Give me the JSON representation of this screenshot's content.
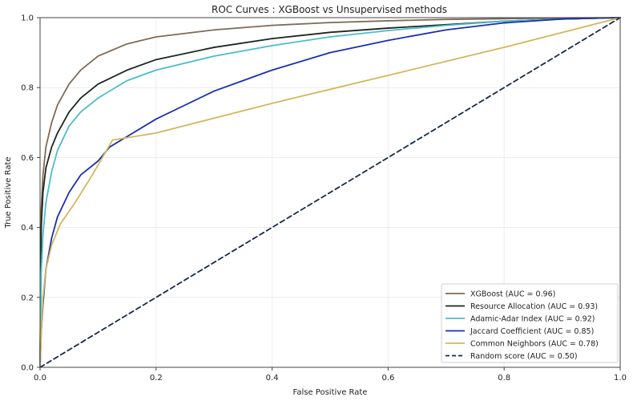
{
  "chart_data": {
    "type": "line",
    "title": "ROC Curves : XGBoost vs Unsupervised methods",
    "xlabel": "False Positive Rate",
    "ylabel": "True Positive Rate",
    "xlim": [
      0,
      1
    ],
    "ylim": [
      0,
      1
    ],
    "xticks": [
      "0.0",
      "0.2",
      "0.4",
      "0.6",
      "0.8",
      "1.0"
    ],
    "yticks": [
      "0.0",
      "0.2",
      "0.4",
      "0.6",
      "0.8",
      "1.0"
    ],
    "grid": true,
    "legend_position": "lower-right",
    "series": [
      {
        "name": "XGBoost (AUC = 0.96)",
        "color": "#7f6a57",
        "dash": "solid",
        "x": [
          0,
          0.002,
          0.005,
          0.01,
          0.02,
          0.03,
          0.05,
          0.07,
          0.1,
          0.15,
          0.2,
          0.3,
          0.4,
          0.5,
          0.6,
          0.7,
          0.8,
          0.9,
          1.0
        ],
        "y": [
          0,
          0.45,
          0.55,
          0.63,
          0.7,
          0.75,
          0.81,
          0.85,
          0.89,
          0.925,
          0.945,
          0.965,
          0.978,
          0.986,
          0.991,
          0.995,
          0.997,
          0.999,
          1.0
        ]
      },
      {
        "name": "Resource Allocation (AUC = 0.93)",
        "color": "#1c2620",
        "dash": "solid",
        "x": [
          0,
          0.002,
          0.005,
          0.01,
          0.02,
          0.03,
          0.05,
          0.07,
          0.1,
          0.15,
          0.2,
          0.3,
          0.4,
          0.5,
          0.6,
          0.7,
          0.8,
          0.9,
          1.0
        ],
        "y": [
          0,
          0.4,
          0.5,
          0.57,
          0.63,
          0.67,
          0.73,
          0.77,
          0.81,
          0.85,
          0.88,
          0.915,
          0.94,
          0.958,
          0.97,
          0.98,
          0.99,
          0.996,
          1.0
        ]
      },
      {
        "name": "Adamic-Adar Index (AUC = 0.92)",
        "color": "#4bbccb",
        "dash": "solid",
        "x": [
          0,
          0.002,
          0.005,
          0.01,
          0.02,
          0.03,
          0.05,
          0.07,
          0.1,
          0.15,
          0.2,
          0.3,
          0.4,
          0.5,
          0.6,
          0.7,
          0.8,
          0.9,
          1.0
        ],
        "y": [
          0,
          0.27,
          0.38,
          0.47,
          0.56,
          0.62,
          0.69,
          0.73,
          0.77,
          0.82,
          0.85,
          0.89,
          0.92,
          0.945,
          0.963,
          0.978,
          0.99,
          0.996,
          1.0
        ]
      },
      {
        "name": "Jaccard Coefficient (AUC = 0.85)",
        "color": "#1c2fb0",
        "dash": "solid",
        "x": [
          0,
          0.002,
          0.005,
          0.01,
          0.02,
          0.03,
          0.05,
          0.07,
          0.1,
          0.12,
          0.15,
          0.2,
          0.25,
          0.3,
          0.35,
          0.4,
          0.5,
          0.6,
          0.7,
          0.8,
          0.9,
          1.0
        ],
        "y": [
          0,
          0.1,
          0.18,
          0.28,
          0.37,
          0.43,
          0.5,
          0.55,
          0.59,
          0.63,
          0.66,
          0.71,
          0.75,
          0.79,
          0.82,
          0.85,
          0.9,
          0.935,
          0.965,
          0.985,
          0.996,
          1.0
        ]
      },
      {
        "name": "Common Neighbors (AUC = 0.78)",
        "color": "#d4b65a",
        "dash": "solid",
        "x": [
          0,
          0.002,
          0.005,
          0.01,
          0.02,
          0.035,
          0.06,
          0.09,
          0.125,
          0.2,
          0.4,
          0.6,
          0.8,
          1.0
        ],
        "y": [
          0,
          0.1,
          0.2,
          0.28,
          0.35,
          0.41,
          0.47,
          0.55,
          0.65,
          0.67,
          0.755,
          0.835,
          0.915,
          1.0
        ]
      },
      {
        "name": "Random score (AUC = 0.50)",
        "color": "#16294d",
        "dash": "dashed",
        "x": [
          0,
          1
        ],
        "y": [
          0,
          1
        ]
      }
    ]
  }
}
